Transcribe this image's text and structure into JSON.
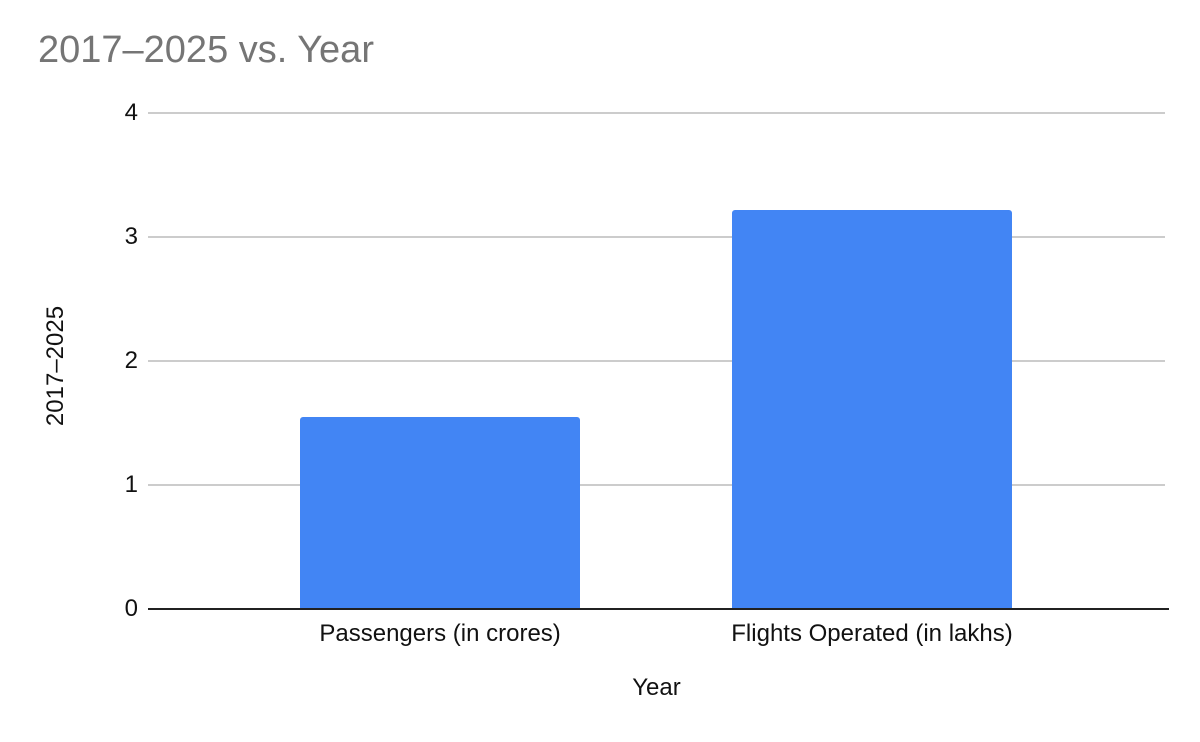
{
  "page": {
    "background": "#ffffff"
  },
  "chart_data": {
    "type": "bar",
    "title": "2017–2025 vs. Year",
    "categories": [
      "Passengers (in crores)",
      "Flights Operated (in lakhs)"
    ],
    "values": [
      1.55,
      3.22
    ],
    "xlabel": "Year",
    "ylabel": "2017–2025",
    "ylim": [
      0,
      4
    ],
    "yticks": [
      0,
      1,
      2,
      3,
      4
    ],
    "grid": true,
    "legend": "none",
    "colors": {
      "bar": "#4285f4",
      "title_text": "#757575",
      "axis_text": "#111111",
      "gridline": "#cccccc",
      "baseline": "#212121",
      "background": "#ffffff"
    }
  }
}
